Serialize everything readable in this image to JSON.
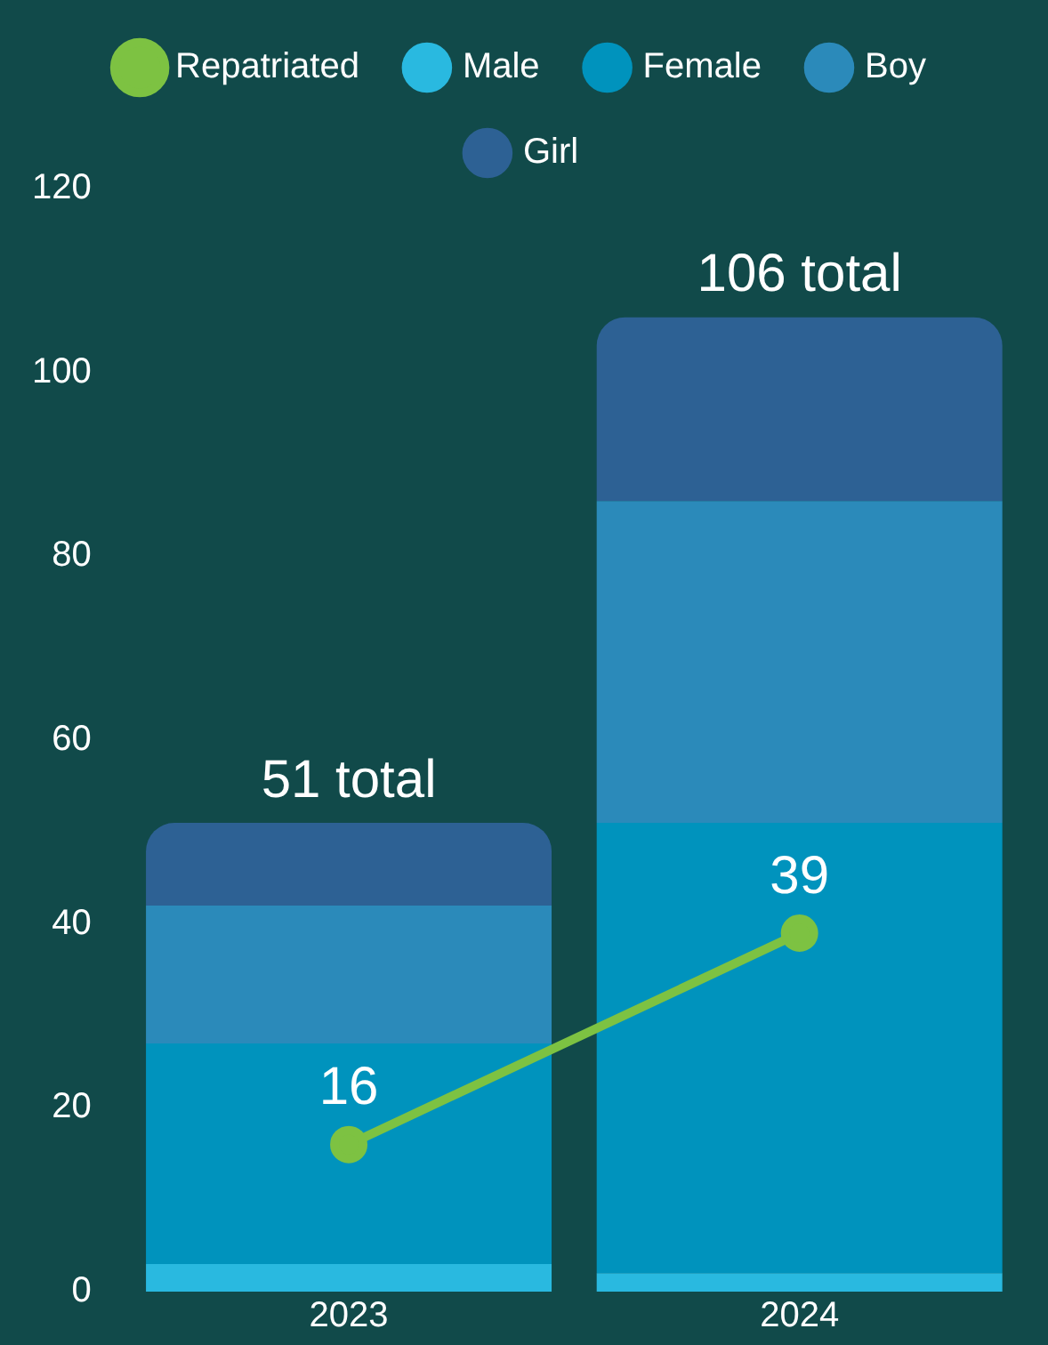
{
  "chart_data": {
    "type": "bar",
    "stacked": true,
    "categories": [
      "2023",
      "2024"
    ],
    "series": [
      {
        "name": "Male",
        "color": "#29b9e0",
        "values": [
          3,
          2
        ]
      },
      {
        "name": "Female",
        "color": "#0093bd",
        "values": [
          24,
          49
        ]
      },
      {
        "name": "Boy",
        "color": "#2b8aba",
        "values": [
          15,
          35
        ]
      },
      {
        "name": "Girl",
        "color": "#2d6194",
        "values": [
          9,
          20
        ]
      },
      {
        "name": "Repatriated",
        "type": "line",
        "color": "#7dc242",
        "marker": "circle",
        "values": [
          16,
          39
        ],
        "value_labels": [
          "16",
          "39"
        ]
      }
    ],
    "totals": [
      "51 total",
      "106 total"
    ],
    "ylim": [
      0,
      120
    ],
    "yticks": [
      0,
      20,
      40,
      60,
      80,
      100,
      120
    ],
    "grid": false,
    "legend": "top"
  }
}
